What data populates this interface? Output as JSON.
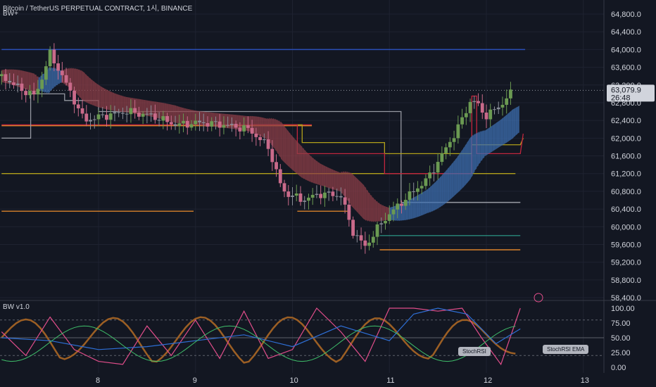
{
  "header": {
    "title": "Bitcoin / TetherUS PERPETUAL CONTRACT, 1시, BINANCE",
    "indicator": "BW+",
    "sub_indicator": "BW v1.0"
  },
  "price_panel": {
    "last_price": "63,079.9",
    "countdown": "26:48",
    "y_ticks": [
      "64,800.0",
      "64,400.0",
      "64,000.0",
      "63,600.0",
      "63,200.0",
      "62,800.0",
      "62,400.0",
      "62,000.0",
      "61,600.0",
      "61,200.0",
      "60,800.0",
      "60,400.0",
      "60,000.0",
      "59,600.0",
      "59,200.0",
      "58,800.0",
      "58,400.0"
    ]
  },
  "osc_panel": {
    "y_ticks": [
      "100.00",
      "75.00",
      "50.00",
      "25.00",
      "0.00"
    ],
    "labels": {
      "stochrsi": "StochRSI",
      "stochrsi_ema": "StochRSI EMA"
    }
  },
  "x_axis": {
    "ticks": [
      "8",
      "9",
      "10",
      "11",
      "12",
      "13"
    ]
  },
  "colors": {
    "background": "#131722",
    "bull_candle": "#6b9a52",
    "bear_candle": "#c96a8a",
    "neutral_candle": "#8a8e99",
    "cloud_bull": "#3e6fb0",
    "cloud_bear": "#8e3f48",
    "level_blue": "#2a4fb8",
    "level_red": "#c2263e",
    "level_orange": "#d9822b",
    "level_olive": "#b2a11a",
    "level_gray": "#9598a1",
    "level_teal": "#2a8a7c",
    "stoch_k": "#e04d8a",
    "stoch_d": "#2e6fd6",
    "stoch_ema": "#3fbf6a",
    "osc_brown": "#9c5f24"
  },
  "chart_data": [
    {
      "type": "candlestick",
      "title": "Bitcoin / TetherUS PERPETUAL CONTRACT, 1시, BINANCE",
      "x_tick_labels": [
        "8",
        "9",
        "10",
        "11",
        "12",
        "13"
      ],
      "ylim": [
        58400,
        64900
      ],
      "y_tick_labels": [
        "64,800.0",
        "64,400.0",
        "64,000.0",
        "63,600.0",
        "63,200.0",
        "62,800.0",
        "62,400.0",
        "62,000.0",
        "61,600.0",
        "61,200.0",
        "60,800.0",
        "60,400.0",
        "60,000.0",
        "59,600.0",
        "59,200.0",
        "58,800.0",
        "58,400.0"
      ],
      "last_price": 63079.9,
      "price_path": [
        [
          7.0,
          63400
        ],
        [
          7.2,
          63100
        ],
        [
          7.35,
          62950
        ],
        [
          7.5,
          63900
        ],
        [
          7.65,
          63300
        ],
        [
          7.85,
          62400
        ],
        [
          8.05,
          62500
        ],
        [
          8.3,
          62600
        ],
        [
          8.55,
          62500
        ],
        [
          8.8,
          62300
        ],
        [
          9.05,
          62350
        ],
        [
          9.3,
          62300
        ],
        [
          9.55,
          62200
        ],
        [
          9.75,
          61800
        ],
        [
          9.9,
          60800
        ],
        [
          10.1,
          60600
        ],
        [
          10.3,
          60750
        ],
        [
          10.5,
          60700
        ],
        [
          10.62,
          59900
        ],
        [
          10.75,
          59550
        ],
        [
          10.92,
          60100
        ],
        [
          11.1,
          60500
        ],
        [
          11.4,
          61100
        ],
        [
          11.7,
          62200
        ],
        [
          11.85,
          62900
        ],
        [
          12.0,
          62500
        ],
        [
          12.15,
          62750
        ],
        [
          12.28,
          63079.9
        ]
      ],
      "horizontal_levels": [
        {
          "color": "blue",
          "y": 64000,
          "x": [
            7.0,
            12.4
          ]
        },
        {
          "color": "red",
          "y": 62300,
          "x": [
            7.0,
            10.2
          ]
        },
        {
          "color": "orange",
          "y": 62280,
          "x": [
            7.0,
            10.2
          ]
        },
        {
          "color": "olive",
          "y": 61200,
          "x": [
            7.0,
            12.3
          ]
        },
        {
          "color": "orange",
          "y": 60350,
          "x": [
            7.0,
            8.98
          ]
        },
        {
          "color": "orange",
          "y": 60350,
          "x": [
            10.05,
            10.6
          ]
        },
        {
          "color": "orange",
          "y": 59480,
          "x": [
            10.9,
            12.35
          ]
        },
        {
          "color": "gray",
          "y": 60550,
          "x": [
            11.2,
            12.35
          ]
        },
        {
          "color": "teal",
          "y": 59800,
          "x": [
            10.9,
            12.35
          ]
        }
      ]
    },
    {
      "type": "line",
      "title": "BW v1.0",
      "x_tick_labels": [
        "8",
        "9",
        "10",
        "11",
        "12",
        "13"
      ],
      "ylim": [
        0,
        100
      ],
      "y_tick_labels": [
        "100.00",
        "75.00",
        "50.00",
        "25.00",
        "0.00"
      ],
      "series": [
        {
          "name": "StochRSI",
          "values": [
            [
              7,
              60
            ],
            [
              7.25,
              20
            ],
            [
              7.5,
              85
            ],
            [
              7.75,
              30
            ],
            [
              8,
              10
            ],
            [
              8.25,
              5
            ],
            [
              8.5,
              70
            ],
            [
              8.75,
              20
            ],
            [
              9,
              80
            ],
            [
              9.25,
              15
            ],
            [
              9.5,
              95
            ],
            [
              9.75,
              15
            ],
            [
              10,
              30
            ],
            [
              10.25,
              100
            ],
            [
              10.5,
              60
            ],
            [
              10.75,
              10
            ],
            [
              11,
              100
            ],
            [
              11.25,
              100
            ],
            [
              11.5,
              95
            ],
            [
              11.75,
              100
            ],
            [
              11.95,
              50
            ],
            [
              12.15,
              5
            ],
            [
              12.35,
              100
            ]
          ]
        },
        {
          "name": "StochRSI EMA",
          "values": [
            [
              7,
              50
            ],
            [
              7.5,
              45
            ],
            [
              8,
              30
            ],
            [
              8.5,
              35
            ],
            [
              9,
              45
            ],
            [
              9.5,
              55
            ],
            [
              10,
              35
            ],
            [
              10.5,
              70
            ],
            [
              11,
              45
            ],
            [
              11.25,
              90
            ],
            [
              11.5,
              100
            ],
            [
              11.8,
              90
            ],
            [
              12.1,
              40
            ],
            [
              12.35,
              65
            ]
          ]
        }
      ],
      "hlines": [
        80,
        50,
        20
      ]
    }
  ]
}
